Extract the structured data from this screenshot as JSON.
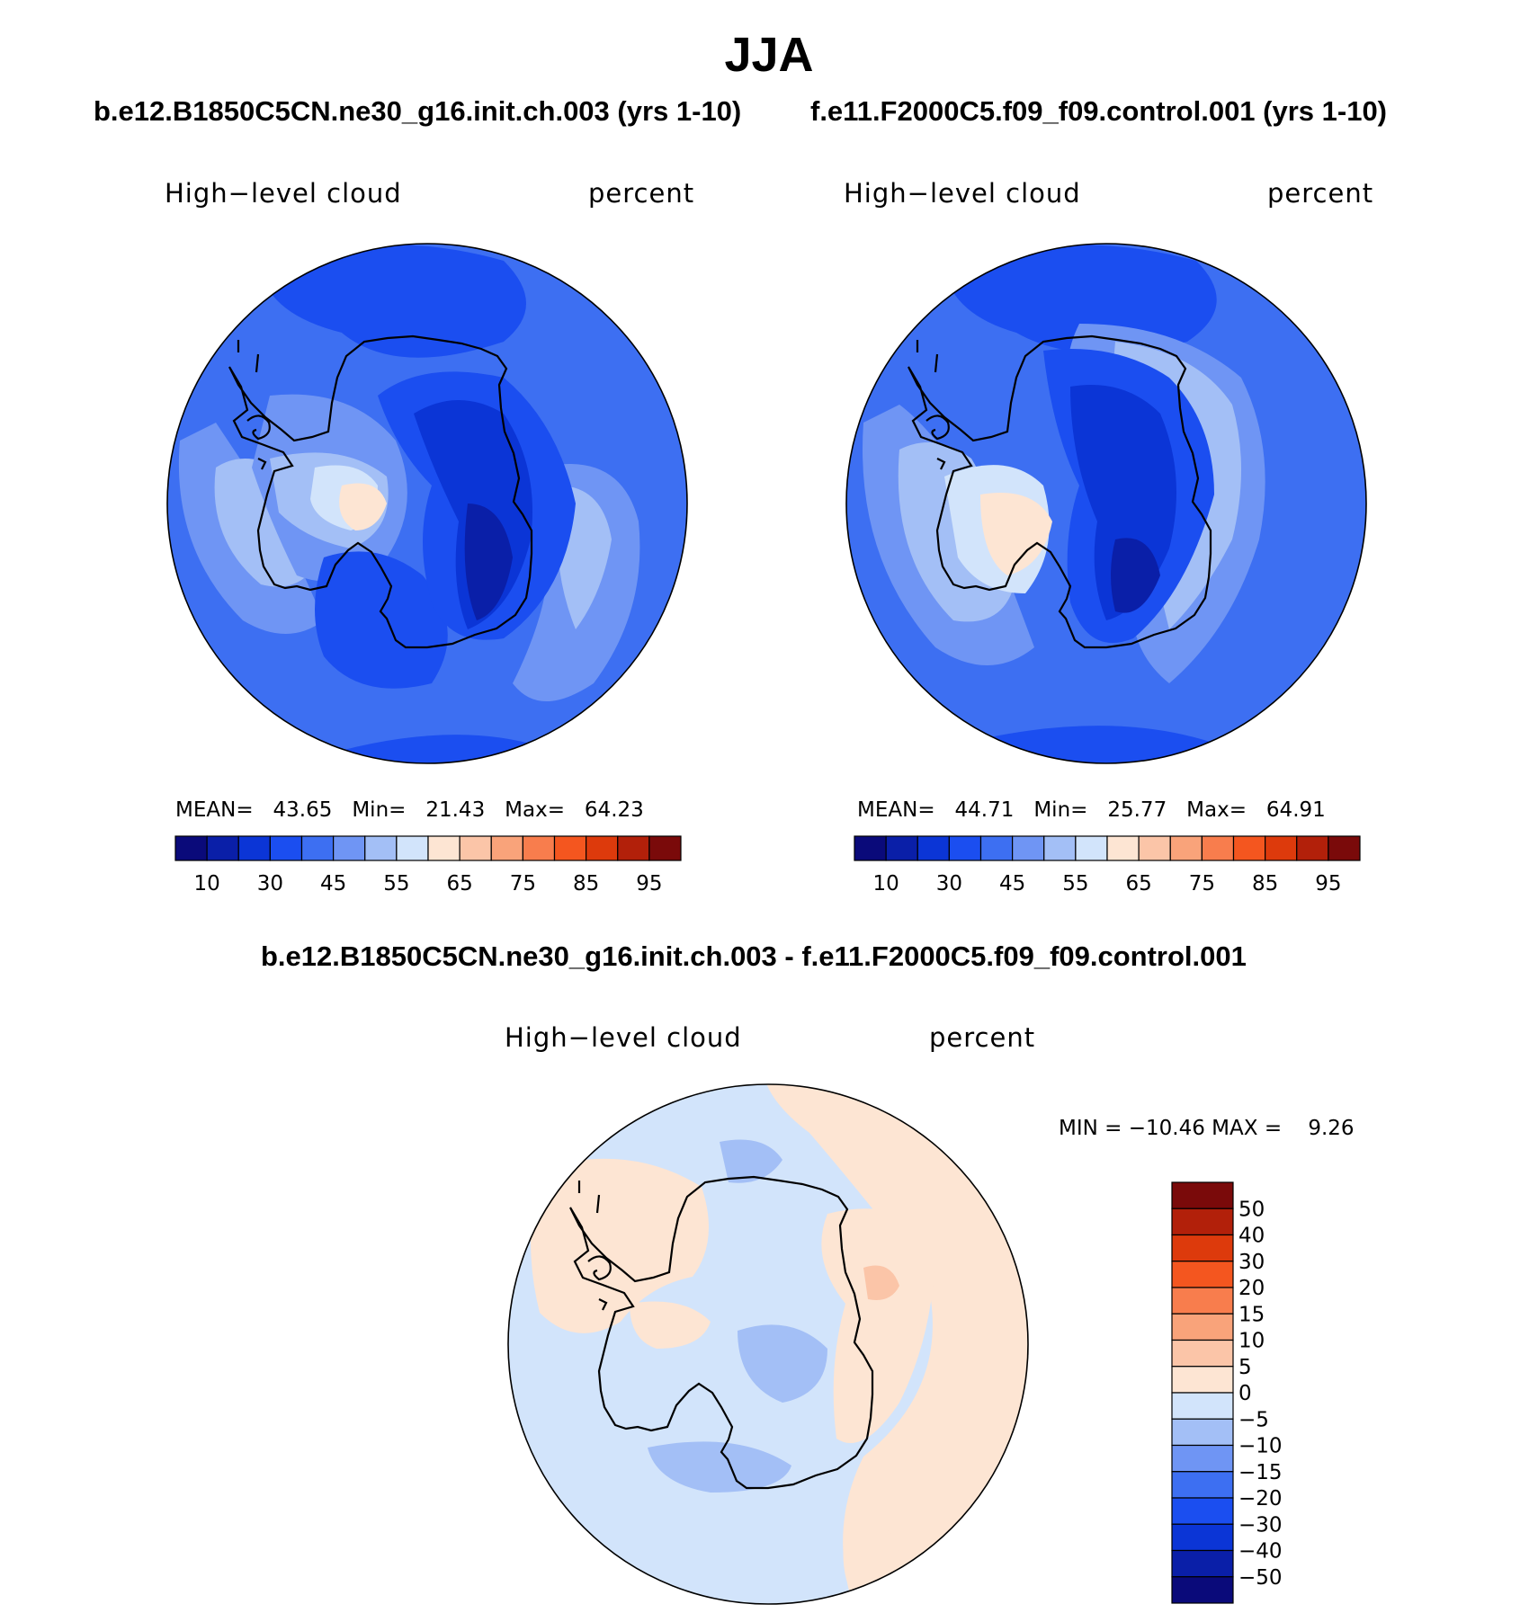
{
  "title": "JJA",
  "color_scales": {
    "absolute": {
      "levels": [
        10,
        20,
        30,
        40,
        45,
        50,
        55,
        60,
        65,
        70,
        75,
        80,
        85,
        90,
        95
      ],
      "tick_labels": [
        "10",
        "30",
        "45",
        "55",
        "65",
        "75",
        "85",
        "95"
      ],
      "colors": [
        "#0a0a7a",
        "#0a1fa8",
        "#0b35d6",
        "#1b4ef0",
        "#3d6ff2",
        "#6f95f4",
        "#a3bff6",
        "#d2e4fb",
        "#fde5d3",
        "#fbc5a8",
        "#f9a37a",
        "#f87d4d",
        "#f4561f",
        "#dd3a0c",
        "#b2200a",
        "#7a0a0a"
      ]
    },
    "difference": {
      "levels": [
        -50,
        -40,
        -30,
        -20,
        -15,
        -10,
        -5,
        0,
        5,
        10,
        15,
        20,
        30,
        40,
        50
      ],
      "tick_labels": [
        "50",
        "40",
        "30",
        "20",
        "15",
        "10",
        "5",
        "0",
        "−5",
        "−10",
        "−15",
        "−20",
        "−30",
        "−40",
        "−50"
      ],
      "colors": [
        "#7a0a0a",
        "#b2200a",
        "#dd3a0c",
        "#f4561f",
        "#f87d4d",
        "#f9a37a",
        "#fbc5a8",
        "#fde5d3",
        "#d2e4fb",
        "#a3bff6",
        "#6f95f4",
        "#3d6ff2",
        "#1b4ef0",
        "#0b35d6",
        "#0a1fa8",
        "#0a0a7a"
      ]
    }
  },
  "panels": [
    {
      "case_title": "b.e12.B1850C5CN.ne30_g16.init.ch.003 (yrs 1-10)",
      "variable": "High−level cloud",
      "units": "percent",
      "mean_label": "MEAN=",
      "mean": "43.65",
      "min_label": "Min=",
      "min": "21.43",
      "max_label": "Max=",
      "max": "64.23"
    },
    {
      "case_title": "f.e11.F2000C5.f09_f09.control.001 (yrs 1-10)",
      "variable": "High−level cloud",
      "units": "percent",
      "mean_label": "MEAN=",
      "mean": "44.71",
      "min_label": "Min=",
      "min": "25.77",
      "max_label": "Max=",
      "max": "64.91"
    },
    {
      "case_title": "b.e12.B1850C5CN.ne30_g16.init.ch.003 - f.e11.F2000C5.f09_f09.control.001",
      "variable": "High−level cloud",
      "units": "percent",
      "min_label": "MIN =",
      "min": "−10.46",
      "max_label": "MAX =",
      "max": "9.26"
    }
  ],
  "map_info": {
    "projection": "polar stereographic (south pole)",
    "region": "Antarctica"
  }
}
